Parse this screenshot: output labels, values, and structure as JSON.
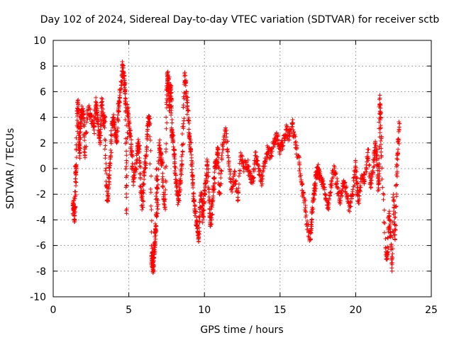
{
  "chart_data": {
    "type": "scatter",
    "title": "Day 102 of 2024, Sidereal Day-to-day VTEC variation (SDTVAR) for receiver sctb",
    "xlabel": "GPS time / hours",
    "ylabel": "SDTVAR / TECUs",
    "xlim": [
      0,
      25
    ],
    "ylim": [
      -10,
      10
    ],
    "xticks": [
      "0",
      "5",
      "10",
      "15",
      "20",
      "25"
    ],
    "yticks": [
      "10",
      "8",
      "6",
      "4",
      "2",
      "0",
      "-2",
      "-4",
      "-6",
      "-8",
      "-10"
    ],
    "grid": true,
    "marker": "+",
    "series": [
      {
        "name": "SDTVAR",
        "color": "#ff0000",
        "x": [
          1.3,
          1.35,
          1.4,
          1.45,
          1.5,
          1.5,
          1.6,
          1.65,
          1.7,
          1.75,
          1.8,
          1.85,
          1.9,
          2.0,
          2.1,
          2.3,
          2.5,
          2.7,
          2.8,
          2.9,
          3.0,
          3.1,
          3.2,
          3.3,
          3.4,
          3.5,
          3.6,
          3.7,
          3.8,
          3.9,
          4.0,
          4.1,
          4.2,
          4.3,
          4.4,
          4.5,
          4.6,
          4.7,
          4.75,
          4.8,
          4.85,
          4.9,
          5.0,
          5.1,
          5.2,
          5.3,
          5.5,
          5.6,
          5.7,
          5.8,
          5.9,
          6.0,
          6.1,
          6.2,
          6.3,
          6.4,
          6.5,
          6.55,
          6.6,
          6.65,
          6.7,
          6.75,
          6.8,
          6.85,
          6.9,
          7.0,
          7.1,
          7.2,
          7.3,
          7.4,
          7.5,
          7.55,
          7.6,
          7.65,
          7.7,
          7.75,
          7.8,
          7.85,
          7.9,
          8.0,
          8.1,
          8.2,
          8.3,
          8.4,
          8.5,
          8.6,
          8.7,
          8.8,
          8.9,
          9.0,
          9.1,
          9.2,
          9.3,
          9.4,
          9.5,
          9.6,
          9.7,
          9.8,
          9.9,
          10.0,
          10.1,
          10.2,
          10.3,
          10.4,
          10.5,
          10.6,
          10.7,
          10.8,
          10.9,
          11.0,
          11.2,
          11.4,
          11.6,
          11.8,
          12.0,
          12.2,
          12.4,
          12.6,
          12.8,
          13.0,
          13.2,
          13.4,
          13.6,
          13.8,
          14.0,
          14.2,
          14.4,
          14.6,
          14.8,
          15.0,
          15.2,
          15.4,
          15.6,
          15.8,
          16.0,
          16.2,
          16.4,
          16.6,
          16.8,
          17.0,
          17.1,
          17.2,
          17.3,
          17.4,
          17.5,
          17.6,
          17.8,
          18.0,
          18.2,
          18.4,
          18.6,
          18.8,
          19.0,
          19.2,
          19.4,
          19.6,
          19.8,
          20.0,
          20.1,
          20.2,
          20.4,
          20.6,
          20.8,
          21.0,
          21.2,
          21.3,
          21.4,
          21.5,
          21.55,
          21.6,
          21.65,
          21.7,
          22.0,
          22.1,
          22.2,
          22.3,
          22.4,
          22.5,
          22.6,
          22.7,
          22.8,
          22.9
        ],
        "y": [
          -3.5,
          -2.5,
          -4.0,
          -3.0,
          0.0,
          -0.5,
          4.5,
          5.0,
          2.0,
          1.0,
          3.5,
          4.0,
          4.5,
          4.2,
          1.0,
          4.8,
          4.0,
          3.0,
          5.2,
          4.5,
          3.0,
          2.0,
          5.5,
          3.5,
          4.0,
          -1.0,
          -2.5,
          -0.5,
          1.0,
          3.5,
          4.0,
          3.0,
          2.0,
          4.5,
          5.5,
          6.8,
          8.0,
          7.0,
          6.0,
          4.5,
          -3.5,
          5.0,
          3.5,
          2.5,
          1.0,
          -1.0,
          0.5,
          2.0,
          1.5,
          -1.5,
          -3.0,
          -0.5,
          0.5,
          2.5,
          4.0,
          3.5,
          -7.5,
          -6.5,
          -8.0,
          -7.0,
          -6.0,
          -5.0,
          -4.5,
          0.0,
          -3.5,
          2.0,
          1.0,
          0.5,
          -2.0,
          -3.0,
          5.0,
          7.5,
          6.0,
          7.0,
          4.5,
          6.5,
          5.5,
          3.0,
          2.5,
          1.0,
          -0.5,
          -2.0,
          -2.5,
          -1.0,
          0.0,
          3.5,
          7.5,
          6.0,
          4.5,
          2.5,
          1.5,
          -0.5,
          -2.5,
          -3.5,
          -4.5,
          -5.5,
          -3.0,
          -2.0,
          -4.0,
          -2.0,
          -1.0,
          0.5,
          -2.5,
          -4.5,
          -3.0,
          -1.5,
          0.0,
          0.5,
          1.5,
          -2.0,
          1.5,
          3.0,
          0.5,
          -1.5,
          -0.5,
          -2.5,
          1.0,
          0.0,
          0.5,
          -0.5,
          -1.0,
          1.0,
          0.0,
          -1.0,
          0.5,
          1.5,
          1.0,
          2.0,
          2.5,
          1.5,
          2.0,
          3.0,
          2.5,
          3.5,
          2.0,
          1.0,
          -1.0,
          -2.5,
          -4.5,
          -5.5,
          -4.0,
          -2.5,
          -1.5,
          -0.5,
          0.0,
          -0.5,
          -1.0,
          -2.0,
          -3.0,
          -1.0,
          0.0,
          -1.5,
          -2.5,
          -1.0,
          -2.0,
          -3.0,
          -2.0,
          0.5,
          -1.5,
          -2.5,
          -0.5,
          -1.0,
          1.5,
          -1.5,
          0.5,
          2.0,
          1.0,
          -1.5,
          0.0,
          5.5,
          4.0,
          1.0,
          -6.5,
          -7.0,
          -3.5,
          -5.0,
          -8.0,
          -2.0,
          -5.5,
          -0.5,
          1.5,
          3.5
        ]
      }
    ]
  }
}
